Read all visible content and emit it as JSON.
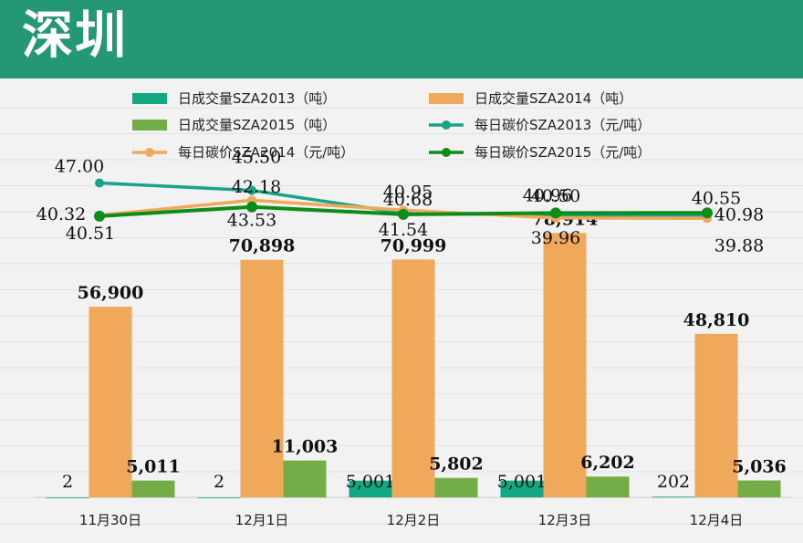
{
  "header": {
    "title": "深圳"
  },
  "colors": {
    "header_bg": "#249775",
    "vol2013": "#12a884",
    "vol2014": "#f0a85a",
    "vol2015": "#72ad48",
    "price2013": "#1aa388",
    "price2014": "#f0a85a",
    "price2015": "#0d8c1a"
  },
  "chart_data": {
    "type": "bar+line",
    "categories": [
      "11月30日",
      "12月1日",
      "12月2日",
      "12月3日",
      "12月4日"
    ],
    "series": [
      {
        "name": "日成交量SZA2013（吨）",
        "kind": "bar",
        "color": "#12a884",
        "values": [
          2,
          2,
          5001,
          5001,
          202
        ],
        "labels": [
          "2",
          "2",
          "5,001",
          "5,001",
          "202"
        ]
      },
      {
        "name": "日成交量SZA2014（吨）",
        "kind": "bar",
        "color": "#f0a85a",
        "values": [
          56900,
          70898,
          70999,
          78914,
          48810
        ],
        "labels": [
          "56,900",
          "70,898",
          "70,999",
          "78,914",
          "48,810"
        ]
      },
      {
        "name": "日成交量SZA2015（吨）",
        "kind": "bar",
        "color": "#72ad48",
        "values": [
          5011,
          11003,
          5802,
          6202,
          5036
        ],
        "labels": [
          "5,011",
          "11,003",
          "5,802",
          "6,202",
          "5,036"
        ]
      },
      {
        "name": "每日碳价SZA2013（元/吨）",
        "kind": "line",
        "color": "#1aa388",
        "values": [
          47.0,
          45.5,
          40.95,
          40.5,
          40.55
        ],
        "labels": [
          "47.00",
          "45.50",
          "40.95",
          "40.50",
          "40.55"
        ]
      },
      {
        "name": "每日碳价SZA2014（元/吨）",
        "kind": "line",
        "color": "#f0a85a",
        "values": [
          40.51,
          43.53,
          41.54,
          39.96,
          39.88
        ],
        "labels": [
          "40.51",
          "43.53",
          "41.54",
          "39.96",
          "39.88"
        ]
      },
      {
        "name": "每日碳价SZA2015（元/吨）",
        "kind": "line",
        "color": "#0d8c1a",
        "values": [
          40.32,
          42.18,
          40.68,
          40.96,
          40.98
        ],
        "labels": [
          "40.32",
          "42.18",
          "40.68",
          "40.96",
          "40.98"
        ]
      }
    ],
    "legend": "top"
  }
}
